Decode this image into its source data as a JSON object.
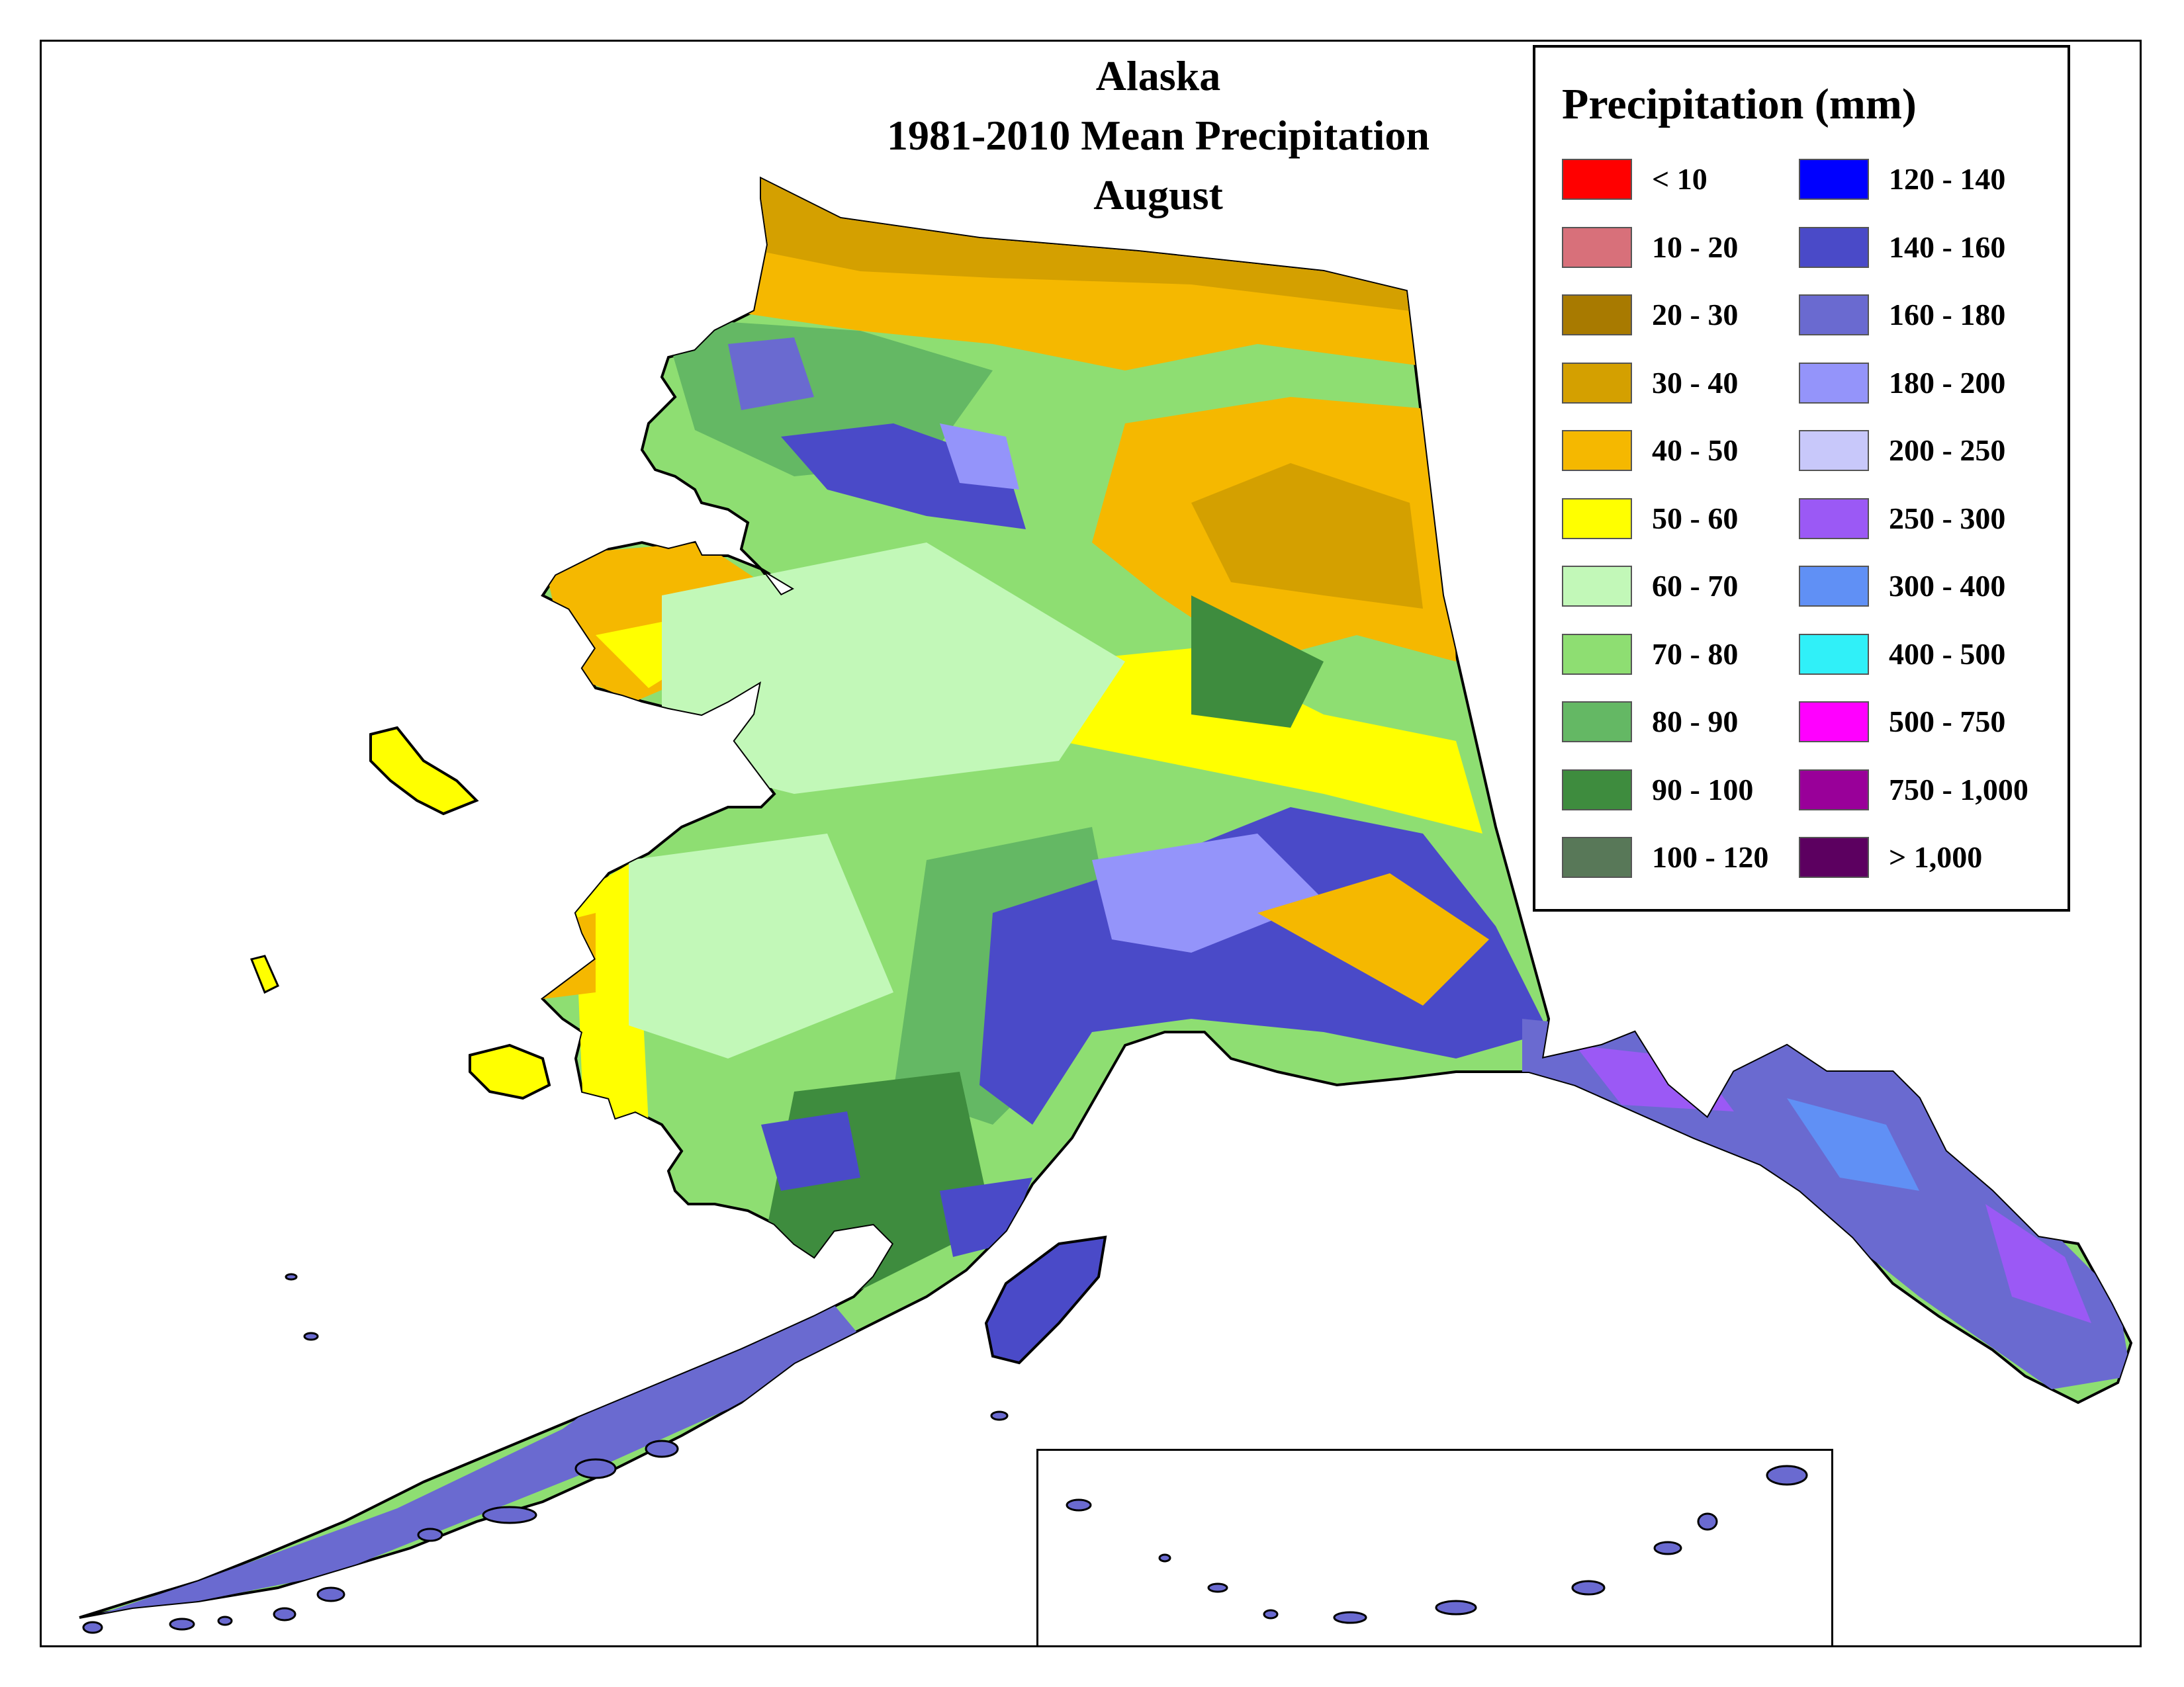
{
  "title": {
    "line1": "Alaska",
    "line2": "1981-2010 Mean Precipitation",
    "line3": "August"
  },
  "legend": {
    "title": "Precipitation (mm)",
    "items": [
      {
        "label": "< 10",
        "color": "#ff0000"
      },
      {
        "label": "10 - 20",
        "color": "#d8707a"
      },
      {
        "label": "20 - 30",
        "color": "#a87a00"
      },
      {
        "label": "30 - 40",
        "color": "#d4a000"
      },
      {
        "label": "40 - 50",
        "color": "#f5b800"
      },
      {
        "label": "50 - 60",
        "color": "#ffff00"
      },
      {
        "label": "60 - 70",
        "color": "#c2f8b8"
      },
      {
        "label": "70 - 80",
        "color": "#8ede72"
      },
      {
        "label": "80 - 90",
        "color": "#64b864"
      },
      {
        "label": "90 - 100",
        "color": "#3e8c3e"
      },
      {
        "label": "100 - 120",
        "color": "#587858"
      },
      {
        "label": "120 - 140",
        "color": "#0000ff"
      },
      {
        "label": "140 - 160",
        "color": "#4a4ac8"
      },
      {
        "label": "160 - 180",
        "color": "#6a6ad0"
      },
      {
        "label": "180 - 200",
        "color": "#9494fa"
      },
      {
        "label": "200 - 250",
        "color": "#c8c8fa"
      },
      {
        "label": "250 - 300",
        "color": "#9b59f5"
      },
      {
        "label": "300 - 400",
        "color": "#6090f5"
      },
      {
        "label": "400 - 500",
        "color": "#30f0f8"
      },
      {
        "label": "500 - 750",
        "color": "#ff00ff"
      },
      {
        "label": "750 - 1,000",
        "color": "#990099"
      },
      {
        "label": "> 1,000",
        "color": "#5c0060"
      }
    ]
  }
}
